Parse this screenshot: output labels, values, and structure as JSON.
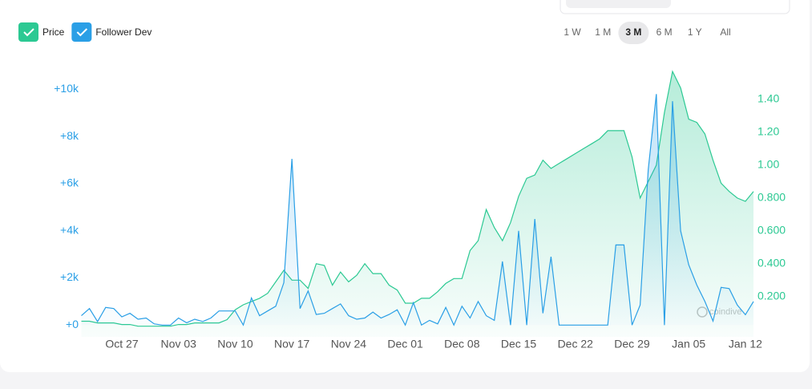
{
  "chart_data": {
    "type": "line",
    "range_buttons": [
      {
        "label": "1 W",
        "active": false
      },
      {
        "label": "1 M",
        "active": false
      },
      {
        "label": "3 M",
        "active": true
      },
      {
        "label": "6 M",
        "active": false
      },
      {
        "label": "1 Y",
        "active": false
      },
      {
        "label": "All",
        "active": false
      }
    ],
    "watermark": "coindive",
    "categories": [
      null,
      null,
      null,
      null,
      null,
      "Oct 27",
      null,
      null,
      null,
      null,
      null,
      null,
      "Nov 03",
      null,
      null,
      null,
      null,
      null,
      null,
      "Nov 10",
      null,
      null,
      null,
      null,
      null,
      null,
      "Nov 17",
      null,
      null,
      null,
      null,
      null,
      null,
      "Nov 24",
      null,
      null,
      null,
      null,
      null,
      null,
      "Dec 01",
      null,
      null,
      null,
      null,
      null,
      null,
      "Dec 08",
      null,
      null,
      null,
      null,
      null,
      null,
      "Dec 15",
      null,
      null,
      null,
      null,
      null,
      null,
      "Dec 22",
      null,
      null,
      null,
      null,
      null,
      null,
      "Dec 29",
      null,
      null,
      null,
      null,
      null,
      null,
      "Jan 05",
      null,
      null,
      null,
      null,
      null,
      null,
      "Jan 12",
      null
    ],
    "series": [
      {
        "name": "Price",
        "color": "#2cc993",
        "axis": "y2",
        "values": [
          0.05,
          0.05,
          0.04,
          0.04,
          0.04,
          0.03,
          0.03,
          0.02,
          0.02,
          0.02,
          0.02,
          0.02,
          0.03,
          0.03,
          0.04,
          0.04,
          0.04,
          0.04,
          0.06,
          0.12,
          0.15,
          0.17,
          0.19,
          0.22,
          0.29,
          0.36,
          0.3,
          0.3,
          0.25,
          0.4,
          0.39,
          0.27,
          0.35,
          0.29,
          0.33,
          0.4,
          0.34,
          0.34,
          0.27,
          0.24,
          0.16,
          0.16,
          0.19,
          0.19,
          0.23,
          0.28,
          0.31,
          0.31,
          0.48,
          0.54,
          0.73,
          0.62,
          0.54,
          0.65,
          0.81,
          0.92,
          0.94,
          1.03,
          0.98,
          1.01,
          1.04,
          1.07,
          1.1,
          1.13,
          1.16,
          1.21,
          1.21,
          1.21,
          1.05,
          0.8,
          0.9,
          1.0,
          1.32,
          1.57,
          1.47,
          1.28,
          1.26,
          1.19,
          1.03,
          0.89,
          0.84,
          0.8,
          0.78,
          0.84
        ]
      },
      {
        "name": "Follower Dev",
        "color": "#2a9fe6",
        "values": [
          400,
          700,
          150,
          750,
          700,
          350,
          500,
          250,
          300,
          50,
          0,
          0,
          300,
          100,
          250,
          150,
          300,
          600,
          600,
          600,
          0,
          1150,
          400,
          600,
          800,
          1800,
          7050,
          700,
          1450,
          450,
          500,
          700,
          900,
          400,
          250,
          300,
          550,
          300,
          450,
          650,
          0,
          950,
          0,
          200,
          50,
          750,
          0,
          800,
          300,
          1000,
          400,
          200,
          2700,
          0,
          4000,
          0,
          4500,
          500,
          2900,
          0,
          0,
          0,
          0,
          0,
          0,
          0,
          3400,
          3400,
          0,
          850,
          6600,
          9800,
          0,
          9500,
          4000,
          2560,
          1700,
          1000,
          170,
          1600,
          1550,
          850,
          440,
          1000
        ]
      }
    ],
    "ylim": [
      -500,
      10900
    ],
    "yticks": [
      {
        "value": 0,
        "label": "+0"
      },
      {
        "value": 2000,
        "label": "+2k"
      },
      {
        "value": 4000,
        "label": "+4k"
      },
      {
        "value": 6000,
        "label": "+6k"
      },
      {
        "value": 8000,
        "label": "+8k"
      },
      {
        "value": 10000,
        "label": "+10k"
      }
    ],
    "y2lim": [
      -0.045,
      1.59
    ],
    "y2ticks": [
      {
        "value": 0.2,
        "label": "0.200"
      },
      {
        "value": 0.4,
        "label": "0.400"
      },
      {
        "value": 0.6,
        "label": "0.600"
      },
      {
        "value": 0.8,
        "label": "0.800"
      },
      {
        "value": 1.0,
        "label": "1.00"
      },
      {
        "value": 1.2,
        "label": "1.20"
      },
      {
        "value": 1.4,
        "label": "1.40"
      }
    ],
    "grid": false
  }
}
